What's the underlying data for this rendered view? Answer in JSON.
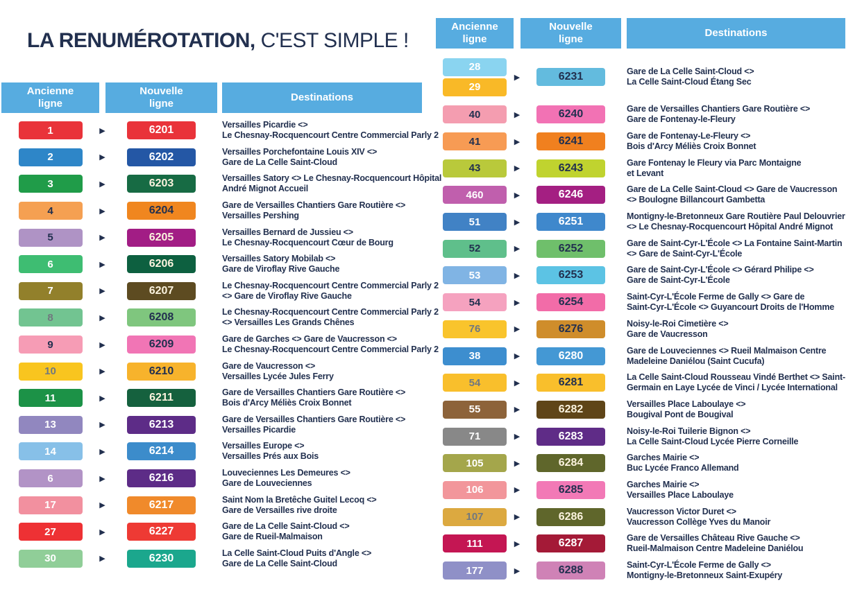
{
  "title": {
    "bold": "LA RENUMÉROTATION,",
    "light": " C'EST SIMPLE !"
  },
  "colors": {
    "navy_text": "#22304F",
    "gray_number": "#71787F",
    "cream_number": "#FBF3DE",
    "white_number": "#FFFFFF",
    "header_blue": "#57ACE0"
  },
  "headers": {
    "old_line": "Ancienne\nligne",
    "new_line": "Nouvelle\nligne",
    "destinations": "Destinations"
  },
  "arrow_icon": "▶",
  "tables": [
    {
      "id": "left",
      "rows": [
        {
          "old": [
            {
              "label": "1",
              "bg": "#E9333A",
              "fg": "w"
            }
          ],
          "new": {
            "label": "6201",
            "bg": "#E9333A",
            "fg": "w"
          },
          "dest": [
            "Versailles Picardie <>",
            "Le Chesnay-Rocquencourt Centre Commercial Parly 2"
          ]
        },
        {
          "old": [
            {
              "label": "2",
              "bg": "#2E86C8",
              "fg": "w"
            }
          ],
          "new": {
            "label": "6202",
            "bg": "#2457A5",
            "fg": "w"
          },
          "dest": [
            "Versailles Porchefontaine Louis XIV <>",
            "Gare de La Celle Saint-Cloud"
          ]
        },
        {
          "old": [
            {
              "label": "3",
              "bg": "#209C49",
              "fg": "w"
            }
          ],
          "new": {
            "label": "6203",
            "bg": "#176B44",
            "fg": "c"
          },
          "dest": [
            "Versailles Satory <> Le Chesnay-Rocquencourt Hôpital",
            "André Mignot Accueil"
          ]
        },
        {
          "old": [
            {
              "label": "4",
              "bg": "#F5A052",
              "fg": "n"
            }
          ],
          "new": {
            "label": "6204",
            "bg": "#F0861F",
            "fg": "n"
          },
          "dest": [
            "Gare de Versailles Chantiers Gare Routière <>",
            "Versailles Pershing"
          ]
        },
        {
          "old": [
            {
              "label": "5",
              "bg": "#AF93C5",
              "fg": "n"
            }
          ],
          "new": {
            "label": "6205",
            "bg": "#A21D85",
            "fg": "c"
          },
          "dest": [
            "Versailles Bernard de Jussieu <>",
            "Le Chesnay-Rocquencourt Cœur de Bourg"
          ]
        },
        {
          "old": [
            {
              "label": "6",
              "bg": "#3EBD72",
              "fg": "w"
            }
          ],
          "new": {
            "label": "6206",
            "bg": "#0D6040",
            "fg": "c"
          },
          "dest": [
            "Versailles Satory Mobilab <>",
            "Gare de Viroflay Rive Gauche"
          ]
        },
        {
          "old": [
            {
              "label": "7",
              "bg": "#92802B",
              "fg": "w"
            }
          ],
          "new": {
            "label": "6207",
            "bg": "#5D4B21",
            "fg": "c"
          },
          "dest": [
            "Le Chesnay-Rocquencourt Centre Commercial Parly 2",
            "<> Gare de Viroflay Rive Gauche"
          ]
        },
        {
          "old": [
            {
              "label": "8",
              "bg": "#72C491",
              "fg": "g"
            }
          ],
          "new": {
            "label": "6208",
            "bg": "#7FC67E",
            "fg": "n"
          },
          "dest": [
            "Le Chesnay-Rocquencourt Centre Commercial Parly 2",
            "<> Versailles Les Grands Chênes"
          ]
        },
        {
          "old": [
            {
              "label": "9",
              "bg": "#F69CB5",
              "fg": "n"
            }
          ],
          "new": {
            "label": "6209",
            "bg": "#F175B5",
            "fg": "n"
          },
          "dest": [
            "Gare de Garches <> Gare de Vaucresson <>",
            "Le Chesnay-Rocquencourt Centre Commercial Parly 2"
          ]
        },
        {
          "old": [
            {
              "label": "10",
              "bg": "#F9C51F",
              "fg": "g"
            }
          ],
          "new": {
            "label": "6210",
            "bg": "#F7B32C",
            "fg": "n"
          },
          "dest": [
            "Gare de Vaucresson <>",
            "Versailles Lycée Jules Ferry"
          ]
        },
        {
          "old": [
            {
              "label": "11",
              "bg": "#1C9247",
              "fg": "w"
            }
          ],
          "new": {
            "label": "6211",
            "bg": "#15613E",
            "fg": "c"
          },
          "dest": [
            "Gare de Versailles Chantiers Gare Routière <>",
            "Bois d'Arcy Méliès Croix Bonnet"
          ]
        },
        {
          "old": [
            {
              "label": "13",
              "bg": "#9187BF",
              "fg": "w"
            }
          ],
          "new": {
            "label": "6213",
            "bg": "#5D2C87",
            "fg": "w"
          },
          "dest": [
            "Gare de Versailles Chantiers Gare Routière <>",
            "Versailles Picardie"
          ]
        },
        {
          "old": [
            {
              "label": "14",
              "bg": "#87C0E8",
              "fg": "w"
            }
          ],
          "new": {
            "label": "6214",
            "bg": "#3C8CCB",
            "fg": "w"
          },
          "dest": [
            "Versailles Europe <>",
            "Versailles Prés aux Bois"
          ]
        },
        {
          "old": [
            {
              "label": "6",
              "bg": "#B293C6",
              "fg": "w"
            }
          ],
          "new": {
            "label": "6216",
            "bg": "#5D2C87",
            "fg": "w"
          },
          "dest": [
            "Louveciennes Les Demeures <>",
            "Gare de Louveciennes"
          ]
        },
        {
          "old": [
            {
              "label": "17",
              "bg": "#F2909F",
              "fg": "w"
            }
          ],
          "new": {
            "label": "6217",
            "bg": "#F08A2B",
            "fg": "w"
          },
          "dest": [
            "Saint Nom la Bretêche Guitel Lecoq <>",
            "Gare de Versailles rive droite"
          ]
        },
        {
          "old": [
            {
              "label": "27",
              "bg": "#EE3134",
              "fg": "w"
            }
          ],
          "new": {
            "label": "6227",
            "bg": "#EE3A34",
            "fg": "w"
          },
          "dest": [
            "Gare de La Celle Saint-Cloud <>",
            "Gare de Rueil-Malmaison"
          ]
        },
        {
          "old": [
            {
              "label": "30",
              "bg": "#90CE98",
              "fg": "w"
            }
          ],
          "new": {
            "label": "6230",
            "bg": "#1BA78D",
            "fg": "w"
          },
          "dest": [
            "La Celle Saint-Cloud Puits d'Angle <>",
            "Gare de La Celle Saint-Cloud"
          ]
        }
      ]
    },
    {
      "id": "right",
      "rows": [
        {
          "old": [
            {
              "label": "28",
              "bg": "#8AD4F0",
              "fg": "w"
            },
            {
              "label": "29",
              "bg": "#F9B927",
              "fg": "w"
            }
          ],
          "new": {
            "label": "6231",
            "bg": "#63BBDE",
            "fg": "n"
          },
          "dest": [
            "Gare de La Celle Saint-Cloud <>",
            "La Celle Saint-Cloud Étang Sec"
          ]
        },
        {
          "old": [
            {
              "label": "40",
              "bg": "#F49DB0",
              "fg": "n"
            }
          ],
          "new": {
            "label": "6240",
            "bg": "#F272B4",
            "fg": "n"
          },
          "dest": [
            "Gare de Versailles Chantiers Gare Routière <>",
            "Gare de Fontenay-le-Fleury"
          ]
        },
        {
          "old": [
            {
              "label": "41",
              "bg": "#F79B54",
              "fg": "n"
            }
          ],
          "new": {
            "label": "6241",
            "bg": "#F0801F",
            "fg": "n"
          },
          "dest": [
            "Gare de Fontenay-Le-Fleury <>",
            "Bois d'Arcy Méliès Croix Bonnet"
          ]
        },
        {
          "old": [
            {
              "label": "43",
              "bg": "#B9C93B",
              "fg": "n"
            }
          ],
          "new": {
            "label": "6243",
            "bg": "#C0D32F",
            "fg": "n"
          },
          "dest": [
            "Gare Fontenay le Fleury via Parc Montaigne",
            "et Levant"
          ]
        },
        {
          "old": [
            {
              "label": "460",
              "bg": "#C05FAD",
              "fg": "w"
            }
          ],
          "new": {
            "label": "6246",
            "bg": "#A41F82",
            "fg": "w"
          },
          "dest": [
            "Gare de La Celle Saint-Cloud <> Gare de Vaucresson",
            "<> Boulogne Billancourt Gambetta"
          ]
        },
        {
          "old": [
            {
              "label": "51",
              "bg": "#4182C5",
              "fg": "w"
            }
          ],
          "new": {
            "label": "6251",
            "bg": "#3F88CC",
            "fg": "w"
          },
          "dest": [
            "Montigny-le-Bretonneux Gare Routière Paul Delouvrier",
            "<> Le Chesnay-Rocquencourt Hôpital André Mignot"
          ]
        },
        {
          "old": [
            {
              "label": "52",
              "bg": "#5FBF8B",
              "fg": "n"
            }
          ],
          "new": {
            "label": "6252",
            "bg": "#6FBF6B",
            "fg": "n"
          },
          "dest": [
            "Gare de Saint-Cyr-L'École <> La Fontaine Saint-Martin",
            "<> Gare de Saint-Cyr-L'École"
          ]
        },
        {
          "old": [
            {
              "label": "53",
              "bg": "#80B4E4",
              "fg": "w"
            }
          ],
          "new": {
            "label": "6253",
            "bg": "#5CC3E4",
            "fg": "n"
          },
          "dest": [
            "Gare de Saint-Cyr-L'École <> Gérard Philipe <>",
            "Gare de Saint-Cyr-L'École"
          ]
        },
        {
          "old": [
            {
              "label": "54",
              "bg": "#F5A2BF",
              "fg": "n"
            }
          ],
          "new": {
            "label": "6254",
            "bg": "#F26CA8",
            "fg": "n"
          },
          "dest": [
            "Saint-Cyr-L'École Ferme de Gally <> Gare de",
            "Saint-Cyr-L'École <> Guyancourt Droits de l'Homme"
          ]
        },
        {
          "old": [
            {
              "label": "76",
              "bg": "#F9C42C",
              "fg": "g"
            }
          ],
          "new": {
            "label": "6276",
            "bg": "#CF8D2B",
            "fg": "n"
          },
          "dest": [
            "Noisy-le-Roi Cimetière <>",
            "Gare de Vaucresson"
          ]
        },
        {
          "old": [
            {
              "label": "38",
              "bg": "#3D8ECF",
              "fg": "w"
            }
          ],
          "new": {
            "label": "6280",
            "bg": "#4498D4",
            "fg": "w"
          },
          "dest": [
            "Gare de Louveciennes <> Rueil Malmaison Centre",
            "Madeleine Daniélou (Saint Cucufa)"
          ]
        },
        {
          "old": [
            {
              "label": "54",
              "bg": "#F9BF2C",
              "fg": "g"
            }
          ],
          "new": {
            "label": "6281",
            "bg": "#F9BF2C",
            "fg": "n"
          },
          "dest": [
            "La Celle Saint-Cloud Rousseau Vindé Berthet <> Saint-",
            "Germain en Laye Lycée de Vinci / Lycée International"
          ]
        },
        {
          "old": [
            {
              "label": "55",
              "bg": "#8D633A",
              "fg": "w"
            }
          ],
          "new": {
            "label": "6282",
            "bg": "#5F4518",
            "fg": "c"
          },
          "dest": [
            "Versailles Place Laboulaye <>",
            "Bougival Pont de Bougival"
          ]
        },
        {
          "old": [
            {
              "label": "71",
              "bg": "#888888",
              "fg": "w"
            }
          ],
          "new": {
            "label": "6283",
            "bg": "#5F2C87",
            "fg": "w"
          },
          "dest": [
            "Noisy-le-Roi Tuilerie Bignon <>",
            "La Celle Saint-Cloud Lycée Pierre Corneille"
          ]
        },
        {
          "old": [
            {
              "label": "105",
              "bg": "#A4A64B",
              "fg": "w"
            }
          ],
          "new": {
            "label": "6284",
            "bg": "#5F662B",
            "fg": "c"
          },
          "dest": [
            "Garches Mairie <>",
            "Buc Lycée Franco Allemand"
          ]
        },
        {
          "old": [
            {
              "label": "106",
              "bg": "#F2969B",
              "fg": "w"
            }
          ],
          "new": {
            "label": "6285",
            "bg": "#F279B6",
            "fg": "n"
          },
          "dest": [
            "Garches Mairie <>",
            "Versailles Place Laboulaye"
          ]
        },
        {
          "old": [
            {
              "label": "107",
              "bg": "#DCA940",
              "fg": "g"
            }
          ],
          "new": {
            "label": "6286",
            "bg": "#5F662B",
            "fg": "c"
          },
          "dest": [
            "Vaucresson Victor Duret <>",
            "Vaucresson Collège Yves du Manoir"
          ]
        },
        {
          "old": [
            {
              "label": "111",
              "bg": "#C41653",
              "fg": "w"
            }
          ],
          "new": {
            "label": "6287",
            "bg": "#A41A37",
            "fg": "w"
          },
          "dest": [
            "Gare de Versailles Château Rive Gauche <>",
            "Rueil-Malmaison Centre Madeleine Daniélou"
          ]
        },
        {
          "old": [
            {
              "label": "177",
              "bg": "#8F90C7",
              "fg": "w"
            }
          ],
          "new": {
            "label": "6288",
            "bg": "#CF82B6",
            "fg": "n"
          },
          "dest": [
            "Saint-Cyr-L'École Ferme de Gally <>",
            "Montigny-le-Bretonneux Saint-Exupéry"
          ]
        }
      ]
    }
  ]
}
